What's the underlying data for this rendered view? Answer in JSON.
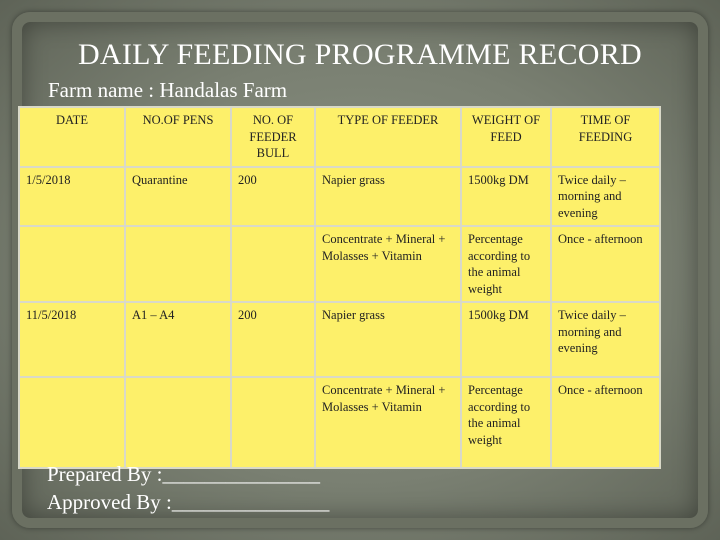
{
  "title": "DAILY FEEDING PROGRAMME RECORD",
  "farm_name_line": "Farm name : Handalas Farm",
  "table": {
    "headers": {
      "date": "DATE",
      "pens": "NO.OF PENS",
      "bulls": "NO. OF FEEDER BULL",
      "feeder_type": "TYPE OF FEEDER",
      "weight": "WEIGHT OF FEED",
      "time": "TIME OF FEEDING"
    },
    "rows": [
      {
        "date": "1/5/2018",
        "pens": "Quarantine",
        "bulls": "200",
        "feeder_type": "Napier grass",
        "weight": "1500kg DM",
        "time": "Twice daily – morning and evening"
      },
      {
        "date": "",
        "pens": "",
        "bulls": "",
        "feeder_type": "Concentrate + Mineral + Molasses + Vitamin",
        "weight": "Percentage according to the animal weight",
        "time": "Once - afternoon"
      },
      {
        "date": "11/5/2018",
        "pens": "A1 – A4",
        "bulls": "200",
        "feeder_type": "Napier grass",
        "weight": "1500kg DM",
        "time": "Twice daily – morning and evening"
      },
      {
        "date": "",
        "pens": "",
        "bulls": "",
        "feeder_type": "Concentrate + Mineral + Molasses + Vitamin",
        "weight": "Percentage according to the animal weight",
        "time": "Once - afternoon"
      }
    ]
  },
  "footer": {
    "prepared_by": "Prepared By :_______________",
    "approved_by": "Approved By :_______________"
  }
}
